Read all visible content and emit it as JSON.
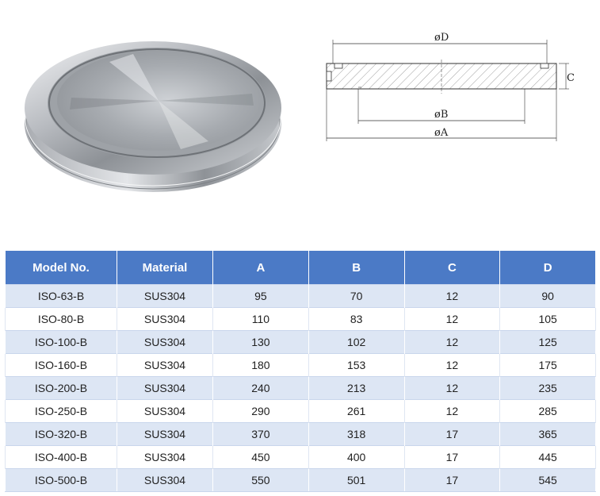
{
  "drawing": {
    "label_d": "øD",
    "label_c": "C",
    "label_b": "øB",
    "label_a": "øA"
  },
  "table": {
    "headers": [
      "Model No.",
      "Material",
      "A",
      "B",
      "C",
      "D"
    ],
    "rows": [
      [
        "ISO-63-B",
        "SUS304",
        "95",
        "70",
        "12",
        "90"
      ],
      [
        "ISO-80-B",
        "SUS304",
        "110",
        "83",
        "12",
        "105"
      ],
      [
        "ISO-100-B",
        "SUS304",
        "130",
        "102",
        "12",
        "125"
      ],
      [
        "ISO-160-B",
        "SUS304",
        "180",
        "153",
        "12",
        "175"
      ],
      [
        "ISO-200-B",
        "SUS304",
        "240",
        "213",
        "12",
        "235"
      ],
      [
        "ISO-250-B",
        "SUS304",
        "290",
        "261",
        "12",
        "285"
      ],
      [
        "ISO-320-B",
        "SUS304",
        "370",
        "318",
        "17",
        "365"
      ],
      [
        "ISO-400-B",
        "SUS304",
        "450",
        "400",
        "17",
        "445"
      ],
      [
        "ISO-500-B",
        "SUS304",
        "550",
        "501",
        "17",
        "545"
      ]
    ]
  }
}
